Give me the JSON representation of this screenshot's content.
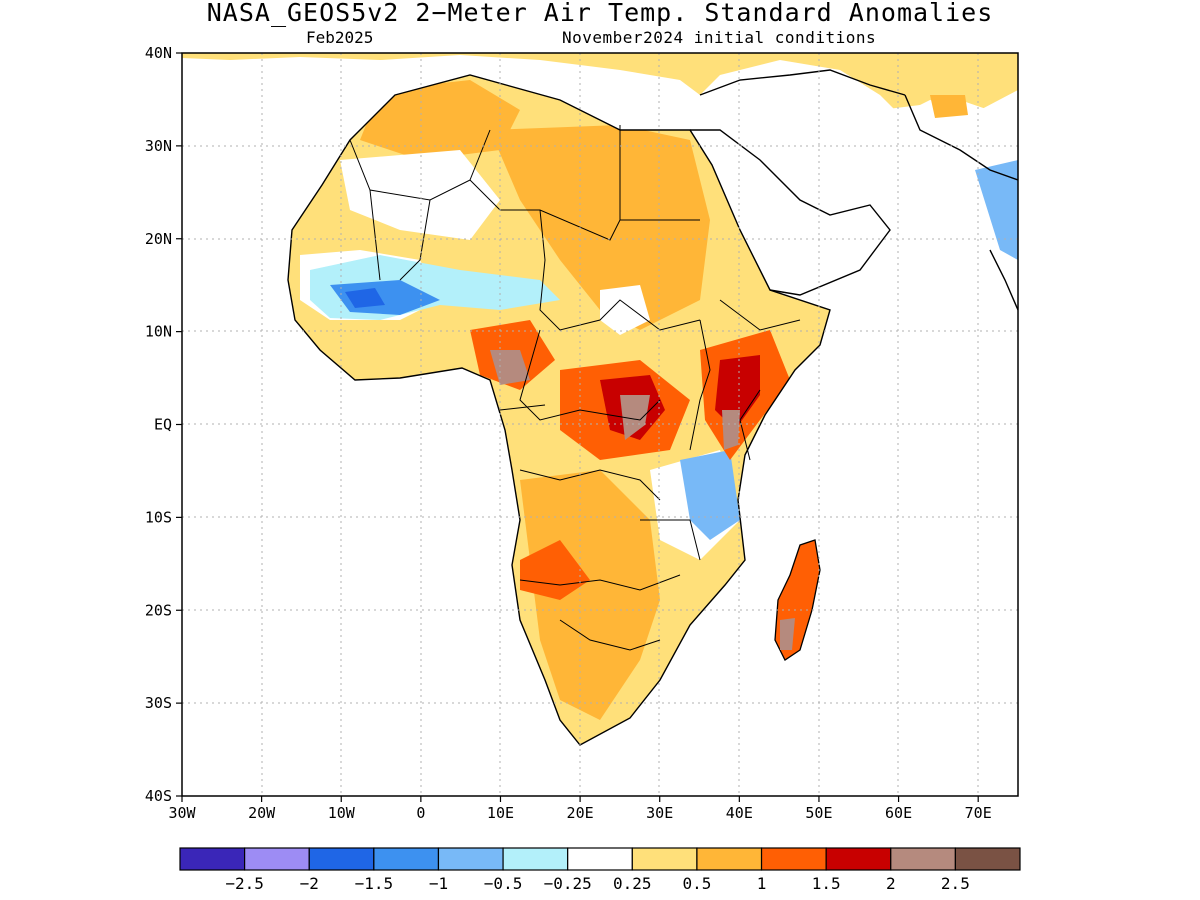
{
  "header": {
    "title": "NASA_GEOS5v2 2−Meter Air Temp. Standard Anomalies",
    "subtitle_left": "Feb2025",
    "subtitle_right": "November2024 initial conditions"
  },
  "map": {
    "lon_range": [
      -30,
      75
    ],
    "lat_range": [
      -40,
      40
    ],
    "grid": "dotted",
    "x_ticks": [
      "30W",
      "20W",
      "10W",
      "0",
      "10E",
      "20E",
      "30E",
      "40E",
      "50E",
      "60E",
      "70E"
    ],
    "y_ticks": [
      "40N",
      "30N",
      "20N",
      "10N",
      "EQ",
      "10S",
      "20S",
      "30S",
      "40S"
    ]
  },
  "colorbar": {
    "colors": [
      "#3a26b8",
      "#9d8cf4",
      "#1f66e6",
      "#3d91f0",
      "#78b9f7",
      "#b3f0fa",
      "#ffffff",
      "#ffe07a",
      "#ffb637",
      "#ff5f04",
      "#c80000",
      "#b58a7e",
      "#7a5244"
    ],
    "labels": [
      "−2.5",
      "−2",
      "−1.5",
      "−1",
      "−0.5",
      "−0.25",
      "0.25",
      "0.5",
      "1",
      "1.5",
      "2",
      "2.5"
    ]
  }
}
